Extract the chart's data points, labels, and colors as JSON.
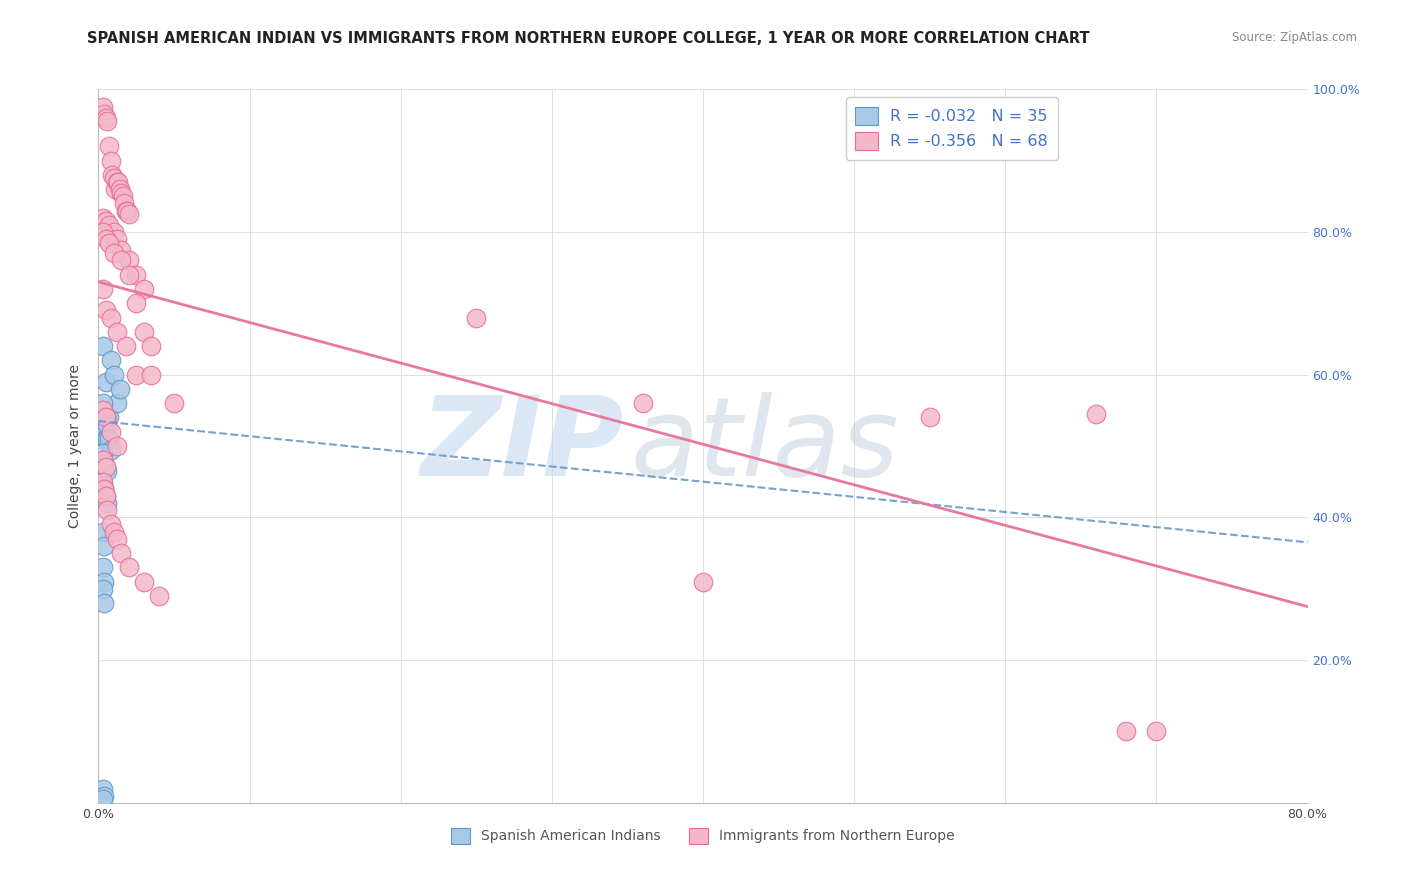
{
  "title": "SPANISH AMERICAN INDIAN VS IMMIGRANTS FROM NORTHERN EUROPE COLLEGE, 1 YEAR OR MORE CORRELATION CHART",
  "source": "Source: ZipAtlas.com",
  "ylabel": "College, 1 year or more",
  "watermark_zip": "ZIP",
  "watermark_atlas": "atlas",
  "xlim": [
    0.0,
    0.8
  ],
  "ylim": [
    0.0,
    1.0
  ],
  "xticks": [
    0.0,
    0.1,
    0.2,
    0.3,
    0.4,
    0.5,
    0.6,
    0.7,
    0.8
  ],
  "yticks": [
    0.0,
    0.2,
    0.4,
    0.6,
    0.8,
    1.0
  ],
  "blue_R": -0.032,
  "blue_N": 35,
  "pink_R": -0.356,
  "pink_N": 68,
  "blue_color": "#a8c8e8",
  "pink_color": "#f4b8c8",
  "blue_edge_color": "#5898c8",
  "pink_edge_color": "#e86898",
  "blue_line_color": "#6898c8",
  "pink_line_color": "#e878a0",
  "legend_blue_label": "R = -0.032   N = 35",
  "legend_pink_label": "R = -0.356   N = 68",
  "legend_label_blue": "Spanish American Indians",
  "legend_label_pink": "Immigrants from Northern Europe",
  "blue_scatter_x": [
    0.003,
    0.005,
    0.007,
    0.008,
    0.01,
    0.012,
    0.014,
    0.003,
    0.005,
    0.003,
    0.004,
    0.005,
    0.006,
    0.007,
    0.005,
    0.006,
    0.007,
    0.008,
    0.003,
    0.004,
    0.005,
    0.006,
    0.003,
    0.004,
    0.005,
    0.006,
    0.003,
    0.004,
    0.003,
    0.004,
    0.003,
    0.004,
    0.003,
    0.004,
    0.003
  ],
  "blue_scatter_y": [
    0.64,
    0.59,
    0.54,
    0.62,
    0.6,
    0.56,
    0.58,
    0.56,
    0.54,
    0.53,
    0.52,
    0.54,
    0.53,
    0.51,
    0.51,
    0.51,
    0.51,
    0.495,
    0.49,
    0.475,
    0.47,
    0.465,
    0.445,
    0.44,
    0.43,
    0.42,
    0.38,
    0.36,
    0.33,
    0.31,
    0.3,
    0.28,
    0.02,
    0.01,
    0.005
  ],
  "pink_scatter_x": [
    0.003,
    0.004,
    0.005,
    0.006,
    0.007,
    0.008,
    0.009,
    0.01,
    0.011,
    0.012,
    0.013,
    0.014,
    0.015,
    0.016,
    0.017,
    0.018,
    0.019,
    0.02,
    0.003,
    0.005,
    0.007,
    0.01,
    0.012,
    0.015,
    0.02,
    0.025,
    0.03,
    0.003,
    0.005,
    0.007,
    0.01,
    0.015,
    0.02,
    0.025,
    0.03,
    0.035,
    0.003,
    0.005,
    0.008,
    0.012,
    0.018,
    0.025,
    0.035,
    0.05,
    0.003,
    0.005,
    0.008,
    0.012,
    0.003,
    0.005,
    0.003,
    0.004,
    0.005,
    0.006,
    0.008,
    0.01,
    0.012,
    0.015,
    0.02,
    0.03,
    0.04,
    0.25,
    0.36,
    0.4,
    0.55,
    0.66,
    0.68,
    0.7
  ],
  "pink_scatter_y": [
    0.975,
    0.965,
    0.96,
    0.955,
    0.92,
    0.9,
    0.88,
    0.875,
    0.86,
    0.87,
    0.87,
    0.86,
    0.855,
    0.85,
    0.84,
    0.83,
    0.83,
    0.825,
    0.82,
    0.815,
    0.81,
    0.8,
    0.79,
    0.775,
    0.76,
    0.74,
    0.72,
    0.8,
    0.79,
    0.785,
    0.77,
    0.76,
    0.74,
    0.7,
    0.66,
    0.64,
    0.72,
    0.69,
    0.68,
    0.66,
    0.64,
    0.6,
    0.6,
    0.56,
    0.55,
    0.54,
    0.52,
    0.5,
    0.48,
    0.47,
    0.45,
    0.44,
    0.43,
    0.41,
    0.39,
    0.38,
    0.37,
    0.35,
    0.33,
    0.31,
    0.29,
    0.68,
    0.56,
    0.31,
    0.54,
    0.545,
    0.1,
    0.1
  ],
  "blue_line_x": [
    0.0,
    0.8
  ],
  "blue_line_y": [
    0.535,
    0.365
  ],
  "pink_line_x": [
    0.0,
    0.8
  ],
  "pink_line_y": [
    0.73,
    0.275
  ],
  "background_color": "#ffffff",
  "grid_color": "#e0e0e0",
  "title_fontsize": 10.5,
  "axis_fontsize": 10,
  "tick_fontsize": 9,
  "right_ytick_color": "#4472c4"
}
